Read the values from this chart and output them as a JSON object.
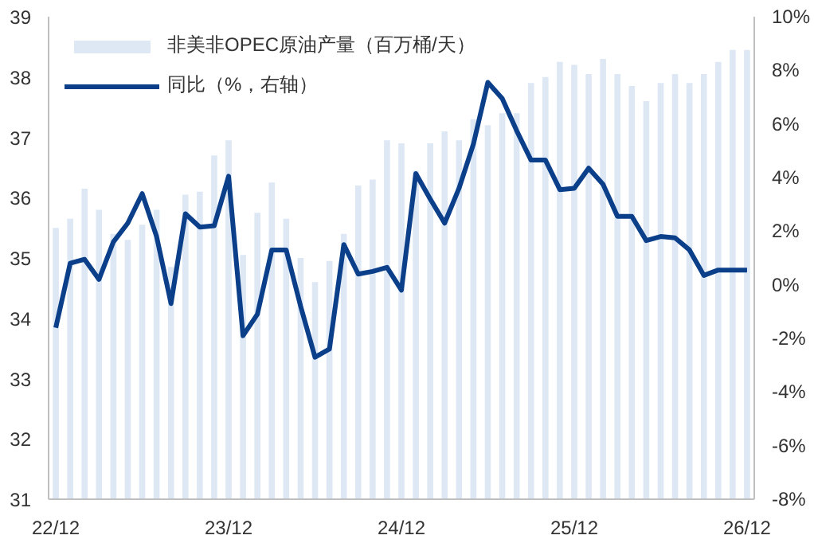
{
  "chart_data": {
    "type": "bar",
    "categories": [
      "22/12",
      null,
      null,
      null,
      null,
      null,
      null,
      null,
      null,
      null,
      null,
      null,
      "23/12",
      null,
      null,
      null,
      null,
      null,
      null,
      null,
      null,
      null,
      null,
      null,
      "24/12",
      null,
      null,
      null,
      null,
      null,
      null,
      null,
      null,
      null,
      null,
      null,
      "25/12",
      null,
      null,
      null,
      null,
      null,
      null,
      null,
      null,
      null,
      null,
      null,
      "26/12"
    ],
    "series": [
      {
        "name": "非美非OPEC原油产量（百万桶/天）",
        "color": "#dde8f4",
        "values": [
          35.5,
          35.65,
          36.15,
          35.8,
          35.4,
          35.3,
          35.55,
          35.8,
          34.85,
          36.05,
          36.1,
          36.7,
          36.95,
          35.05,
          35.75,
          36.25,
          35.65,
          35.0,
          34.6,
          34.95,
          35.4,
          36.2,
          36.3,
          36.95,
          36.9,
          36.45,
          36.9,
          37.1,
          36.95,
          37.3,
          37.2,
          37.4,
          37.4,
          37.9,
          38.0,
          38.25,
          38.2,
          38.05,
          38.3,
          38.05,
          37.85,
          37.6,
          37.9,
          38.05,
          37.9,
          38.05,
          38.25,
          38.45,
          38.45
        ]
      },
      {
        "name": "同比（%，右轴）",
        "type": "line",
        "axis": "y2",
        "color": "#0b3f8a",
        "values": [
          -1.6,
          0.8,
          0.95,
          0.2,
          1.6,
          2.3,
          3.4,
          1.8,
          -0.7,
          2.65,
          2.15,
          2.2,
          4.05,
          -1.9,
          -1.1,
          1.3,
          1.3,
          -0.8,
          -2.7,
          -2.4,
          1.5,
          0.4,
          0.5,
          0.65,
          -0.2,
          4.15,
          3.2,
          2.3,
          3.6,
          5.25,
          7.55,
          6.95,
          5.75,
          4.65,
          4.65,
          3.55,
          3.6,
          4.35,
          3.75,
          2.55,
          2.55,
          1.65,
          1.8,
          1.75,
          1.3,
          0.35,
          0.55,
          0.55,
          0.55
        ]
      }
    ],
    "ylim": [
      31,
      39
    ],
    "yticks": [
      31,
      32,
      33,
      34,
      35,
      36,
      37,
      38,
      39
    ],
    "y2lim": [
      -8,
      10
    ],
    "y2ticks": [
      {
        "value": -8,
        "label": "-8%"
      },
      {
        "value": -6,
        "label": "-6%"
      },
      {
        "value": -4,
        "label": "-4%"
      },
      {
        "value": -2,
        "label": "-2%"
      },
      {
        "value": 0,
        "label": "0%"
      },
      {
        "value": 2,
        "label": "2%"
      },
      {
        "value": 4,
        "label": "4%"
      },
      {
        "value": 6,
        "label": "6%"
      },
      {
        "value": 8,
        "label": "8%"
      },
      {
        "value": 10,
        "label": "10%"
      }
    ],
    "legend": "top left",
    "grid": false,
    "line_style": "solid",
    "marker": "none"
  }
}
